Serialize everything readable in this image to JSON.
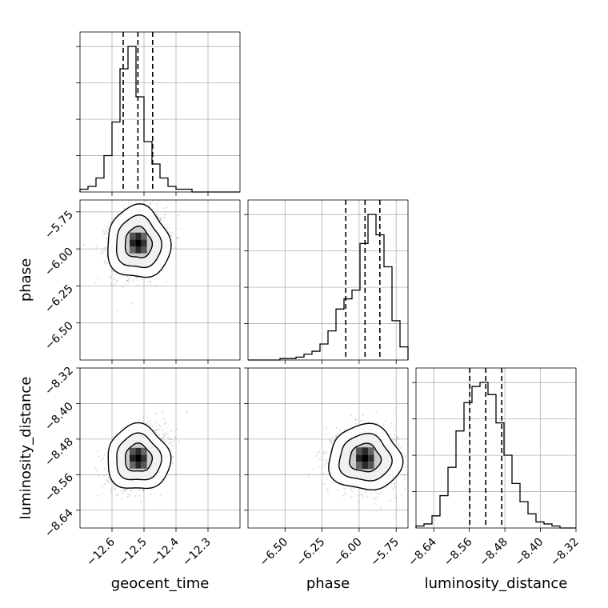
{
  "chart_data": {
    "type": "corner",
    "parameters": [
      "geocent_time",
      "phase",
      "luminosity_distance"
    ],
    "axis_labels": {
      "geocent_time": "geocent_time",
      "phase": "phase",
      "luminosity_distance": "luminosity_distance"
    },
    "ranges": {
      "geocent_time": [
        -12.7,
        -12.2
      ],
      "phase": [
        -6.75,
        -5.67
      ],
      "luminosity_distance": [
        -8.68,
        -8.32
      ]
    },
    "ticks": {
      "geocent_time": [
        -12.6,
        -12.5,
        -12.4,
        -12.3
      ],
      "phase": [
        -6.5,
        -6.25,
        -6.0,
        -5.75
      ],
      "luminosity_distance": [
        -8.64,
        -8.56,
        -8.48,
        -8.4,
        -8.32
      ]
    },
    "tick_labels": {
      "geocent_time": [
        "−12.6",
        "−12.5",
        "−12.4",
        "−12.3"
      ],
      "phase": [
        "−6.50",
        "−6.25",
        "−6.00",
        "−5.75"
      ],
      "luminosity_distance": [
        "−8.64",
        "−8.56",
        "−8.48",
        "−8.40",
        "−8.32"
      ]
    },
    "quantiles": {
      "geocent_time": [
        -12.565,
        -12.519,
        -12.473
      ],
      "phase": [
        -6.09,
        -5.96,
        -5.86
      ],
      "luminosity_distance": [
        -8.559,
        -8.523,
        -8.487
      ]
    },
    "histograms": {
      "geocent_time": {
        "range": [
          -12.7,
          -12.2
        ],
        "counts": [
          1,
          2,
          5,
          13,
          25,
          44,
          52,
          34,
          18,
          10,
          5,
          2,
          1,
          1,
          0,
          0,
          0,
          0,
          0,
          0
        ]
      },
      "phase": {
        "range": [
          -6.75,
          -5.67
        ],
        "counts": [
          0,
          0,
          0,
          0,
          1,
          1,
          2,
          4,
          6,
          11,
          20,
          35,
          42,
          48,
          80,
          100,
          86,
          64,
          27,
          9
        ]
      },
      "luminosity_distance": {
        "range": [
          -8.68,
          -8.32
        ],
        "counts": [
          1,
          2,
          6,
          16,
          30,
          48,
          62,
          70,
          72,
          66,
          52,
          36,
          22,
          13,
          7,
          3,
          2,
          1,
          0,
          0
        ]
      }
    },
    "joint": [
      {
        "x": "geocent_time",
        "y": "phase",
        "center": [
          -12.518,
          -5.96
        ],
        "sigma": [
          0.04,
          0.1
        ],
        "rho": 0.15
      },
      {
        "x": "geocent_time",
        "y": "luminosity_distance",
        "center": [
          -12.518,
          -8.523
        ],
        "sigma": [
          0.04,
          0.03
        ],
        "rho": 0.35
      },
      {
        "x": "phase",
        "y": "luminosity_distance",
        "center": [
          -5.96,
          -8.523
        ],
        "sigma": [
          0.1,
          0.03
        ],
        "rho": -0.05
      }
    ],
    "grid": true
  }
}
